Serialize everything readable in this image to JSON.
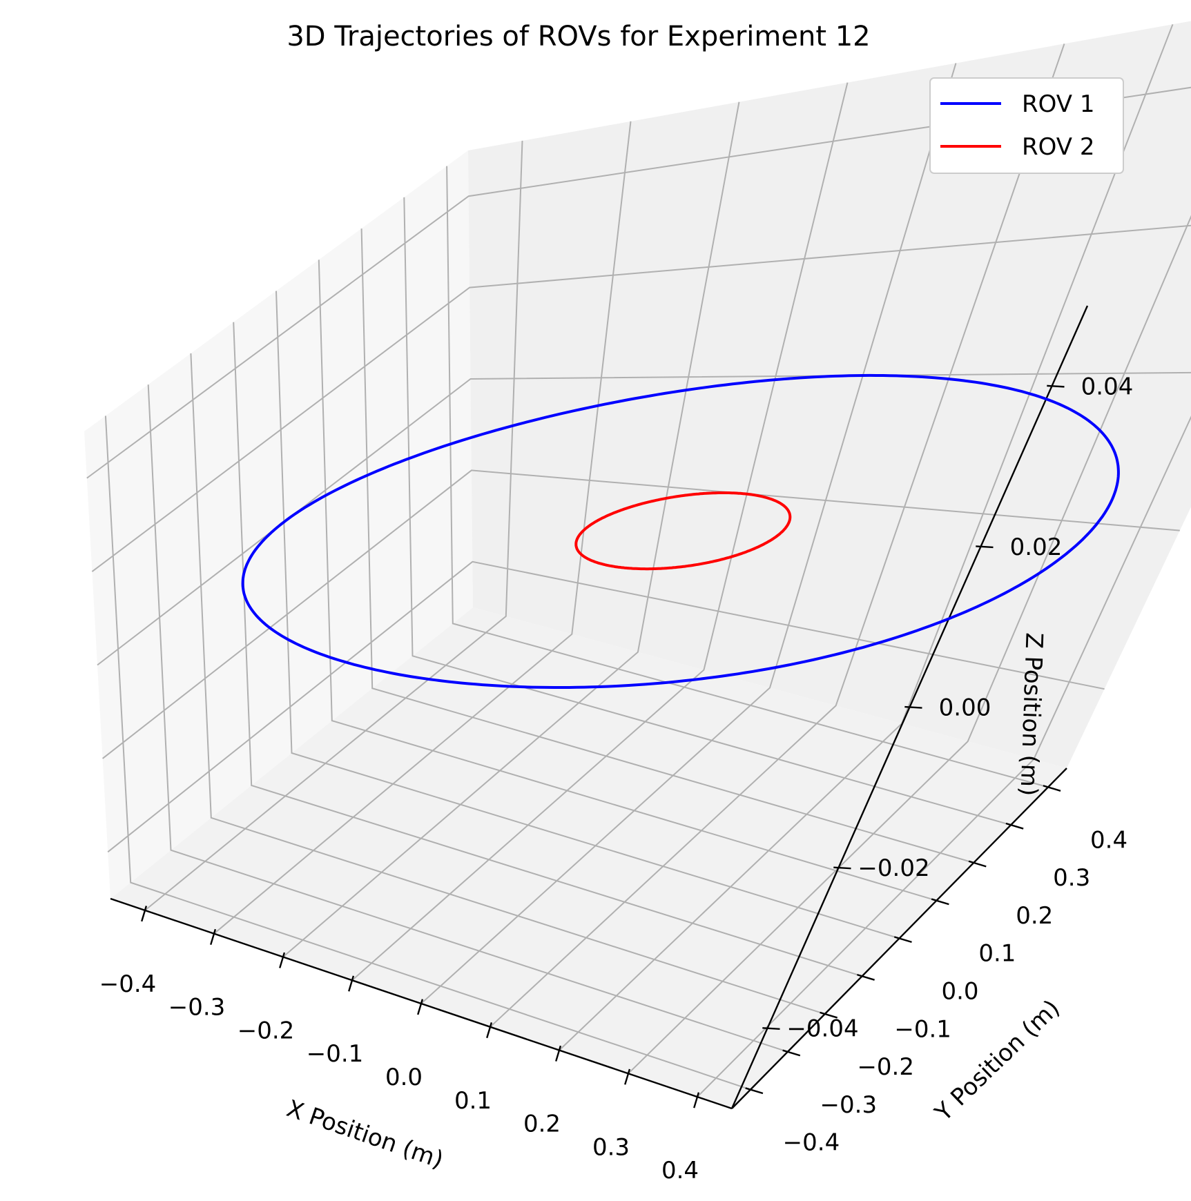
{
  "chart_data": {
    "type": "line",
    "title": "3D Trajectories of ROVs for Experiment 12",
    "xlabel": "X Position (m)",
    "ylabel": "Y Position (m)",
    "zlabel": "Z Position (m)",
    "xlim": [
      -0.45,
      0.45
    ],
    "ylim": [
      -0.45,
      0.45
    ],
    "zlim": [
      -0.05,
      0.05
    ],
    "xticks": [
      -0.4,
      -0.3,
      -0.2,
      -0.1,
      0.0,
      0.1,
      0.2,
      0.3,
      0.4
    ],
    "yticks": [
      -0.4,
      -0.3,
      -0.2,
      -0.1,
      0.0,
      0.1,
      0.2,
      0.3,
      0.4
    ],
    "zticks": [
      -0.04,
      -0.02,
      0.0,
      0.02,
      0.04
    ],
    "xtick_labels": [
      "−0.4",
      "−0.3",
      "−0.2",
      "−0.1",
      "0.0",
      "0.1",
      "0.2",
      "0.3",
      "0.4"
    ],
    "ytick_labels": [
      "−0.4",
      "−0.3",
      "−0.2",
      "−0.1",
      "0.0",
      "0.1",
      "0.2",
      "0.3",
      "0.4"
    ],
    "ztick_labels": [
      "−0.04",
      "−0.02",
      "0.00",
      "0.02",
      "0.04"
    ],
    "grid": true,
    "legend_position": "top-right",
    "series": [
      {
        "name": "ROV 1",
        "color": "#0000ff",
        "shape": "circle",
        "center": [
          0,
          0,
          0
        ],
        "radius": 0.45,
        "z": 0.0
      },
      {
        "name": "ROV 2",
        "color": "#ff0000",
        "shape": "circle",
        "center": [
          0,
          0,
          0
        ],
        "radius": 0.11,
        "z": 0.0
      }
    ]
  }
}
